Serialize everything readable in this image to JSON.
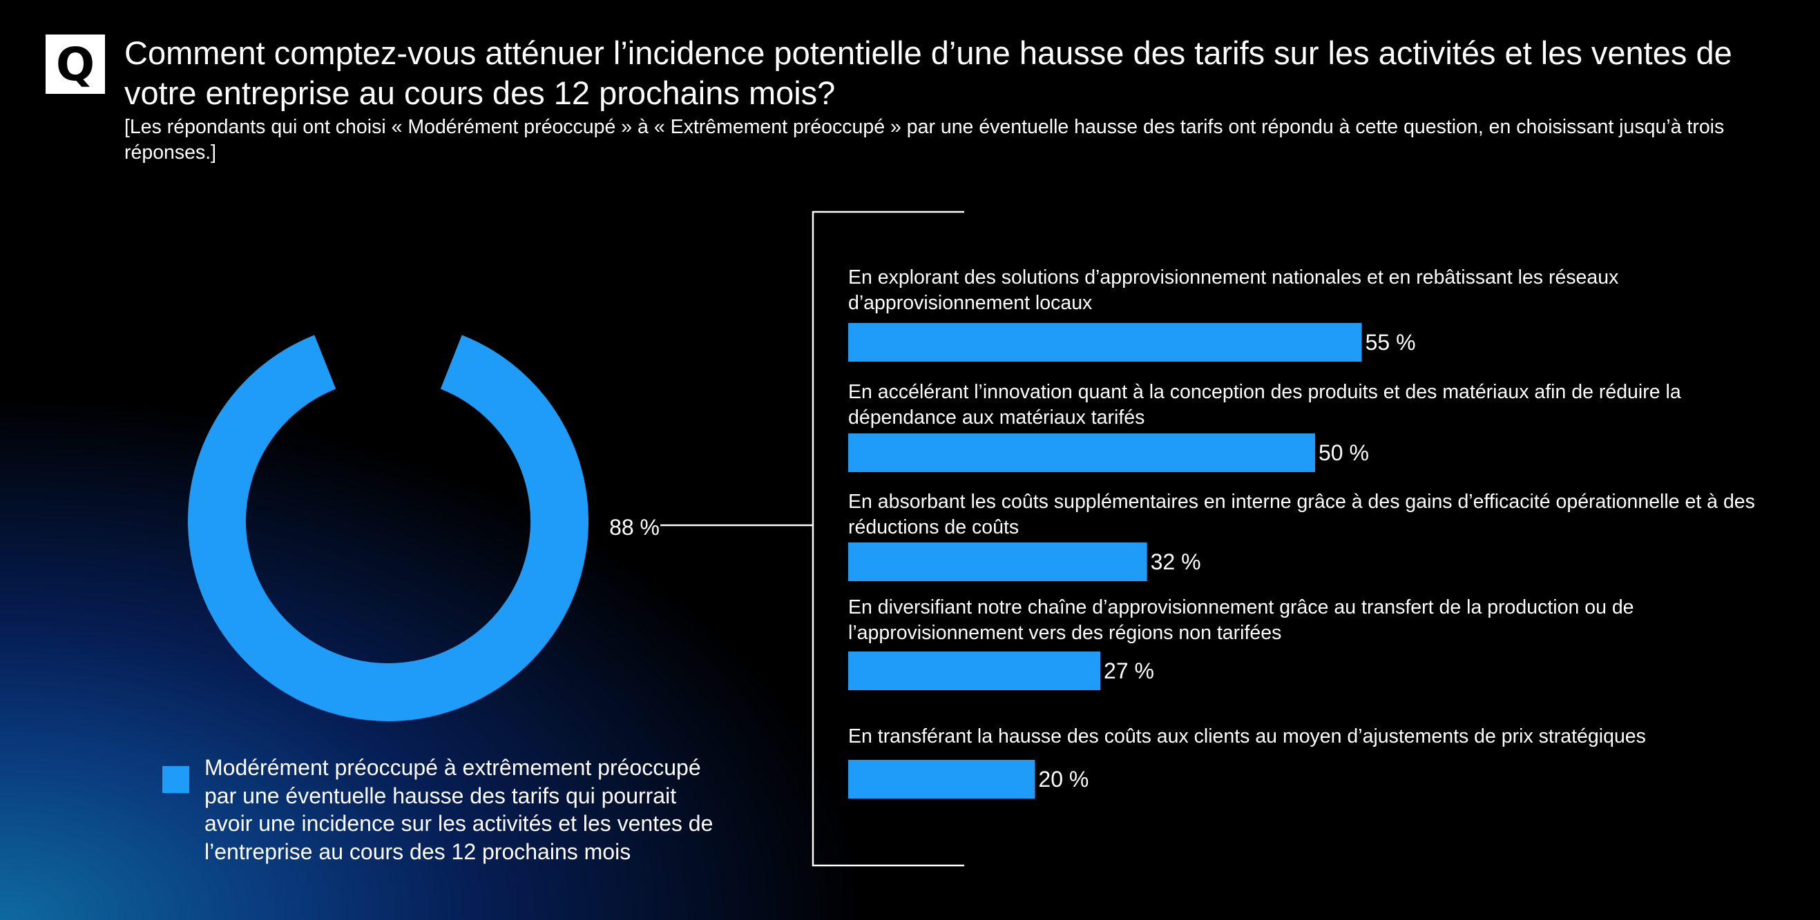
{
  "badge": "Q",
  "title": "Comment comptez-vous atténuer l’incidence potentielle d’une hausse des tarifs sur les activités et les ventes de votre entreprise au cours des 12 prochains mois?",
  "subtitle": "[Les répondants qui ont choisi « Modérément préoccupé » à « Extrêmement préoccupé » par une éventuelle hausse des tarifs ont répondu à cette question, en choisissant jusqu’à trois réponses.]",
  "colors": {
    "accent": "#1f9bf8",
    "text": "#ffffff",
    "background": "#000000",
    "glow": "#0a4a9a"
  },
  "chart_data": [
    {
      "type": "pie",
      "variant": "donut",
      "slices": [
        {
          "label": "Modérément préoccupé à extrêmement préoccupé par une éventuelle hausse des tarifs qui pourrait avoir une incidence sur les activités et les ventes de l’entreprise au cours des 12 prochains mois",
          "value": 88,
          "display": "88 %"
        }
      ],
      "total": 100,
      "legend": "bottom-left"
    },
    {
      "type": "bar",
      "orientation": "horizontal",
      "categories": [
        "En explorant des solutions d’approvisionnement nationales et en rebâtissant les réseaux d’approvisionnement locaux",
        "En accélérant l’innovation quant à la conception des produits et des matériaux afin de réduire la dépendance aux matériaux tarifés",
        "En absorbant les coûts supplémentaires en interne grâce à des gains d’efficacité opérationnelle et à des réductions de coûts",
        "En diversifiant notre chaîne d’approvisionnement grâce au transfert de la production ou de l’approvisionnement vers des régions non tarifées",
        "En transférant la hausse des coûts aux clients au moyen d’ajustements de prix stratégiques"
      ],
      "values": [
        55,
        50,
        32,
        27,
        20
      ],
      "value_labels": [
        "55 %",
        "50 %",
        "32 %",
        "27 %",
        "20 %"
      ],
      "unit": "%"
    }
  ]
}
